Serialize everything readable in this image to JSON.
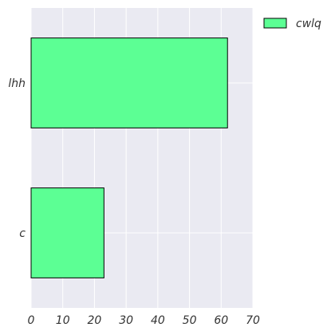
{
  "chart_data": {
    "type": "bar",
    "orientation": "horizontal",
    "categories": [
      "lhh",
      "c"
    ],
    "series": [
      {
        "name": "cwlq",
        "values": [
          62,
          23
        ]
      }
    ],
    "xlim": [
      0,
      70
    ],
    "xticks": [
      0,
      10,
      20,
      30,
      40,
      50,
      60,
      70
    ],
    "grid": true,
    "legend_position": "top-right",
    "colors": {
      "bar": "#5cff94",
      "bar_edge": "#000000",
      "plot_background": "#eaeaf2",
      "grid": "#ffffff"
    }
  }
}
